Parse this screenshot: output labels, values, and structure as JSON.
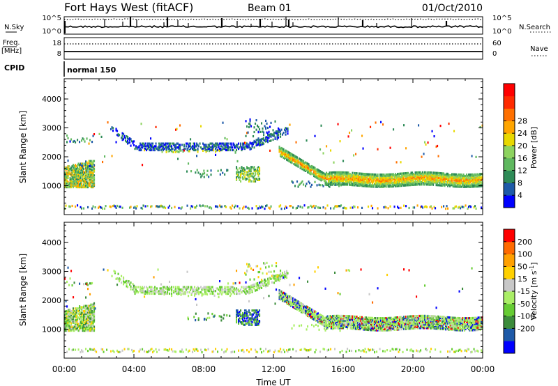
{
  "header": {
    "title": "Fort Hays West (fitACF)",
    "beam": "Beam 01",
    "date": "01/Oct/2010"
  },
  "sky_panel": {
    "left_label": "N.Sky",
    "left_ticks": [
      "10^5",
      "10^0"
    ],
    "right_label": "N.Search",
    "right_ticks": [
      "10^5",
      "10^0"
    ]
  },
  "freq_panel": {
    "left_label_top": "Freq.",
    "left_label_bottom": "[MHz]",
    "left_ticks": [
      "18",
      "8"
    ],
    "right_label": "Nave",
    "right_ticks": [
      "60",
      "0"
    ]
  },
  "cpid": {
    "label": "CPID",
    "value": "normal 150"
  },
  "chart_data": [
    {
      "type": "heatmap",
      "quantity": "Power",
      "ylabel": "Slant Range [km]",
      "ylim": [
        0,
        4700
      ],
      "yticks": [
        "1000",
        "2000",
        "3000",
        "4000"
      ],
      "xlim_hours": [
        0,
        24
      ],
      "colorbar_label": "Power [dB]",
      "colorbar_ticks": [
        "4",
        "8",
        "12",
        "16",
        "20",
        "24",
        "28"
      ],
      "colorbar_colors": [
        "#0000ff",
        "#1e5aa8",
        "#2e8b57",
        "#5fb85f",
        "#8dd35f",
        "#e8d800",
        "#ffa500",
        "#ff7000",
        "#ff2a00",
        "#ff0000"
      ]
    },
    {
      "type": "heatmap",
      "quantity": "Velocity",
      "ylabel": "Slant Range [km]",
      "ylim": [
        0,
        4700
      ],
      "yticks": [
        "1000",
        "2000",
        "3000",
        "4000"
      ],
      "xlim_hours": [
        0,
        24
      ],
      "colorbar_label": "Velocity [m s^-1]",
      "colorbar_ticks": [
        "200",
        "100",
        "50",
        "15",
        "-15",
        "-50",
        "-100",
        "-200"
      ],
      "colorbar_colors": [
        "#0000ff",
        "#1e5aa8",
        "#3c8c3c",
        "#66cc33",
        "#aaee66",
        "#c8c8c8",
        "#ffd000",
        "#ffa000",
        "#ff6a00",
        "#ff0000"
      ]
    }
  ],
  "xaxis": {
    "label": "Time UT",
    "ticks": [
      "00:00",
      "04:00",
      "08:00",
      "12:00",
      "16:00",
      "20:00",
      "00:00"
    ]
  }
}
